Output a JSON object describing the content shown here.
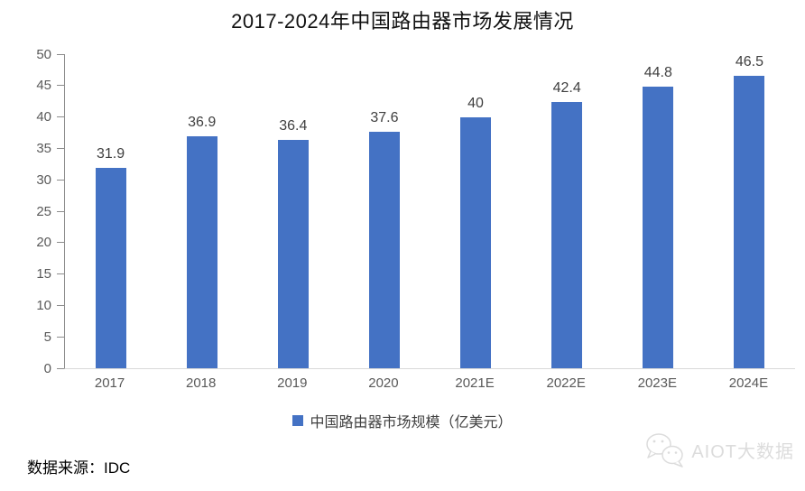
{
  "title": "2017-2024年中国路由器市场发展情况",
  "chart_data": {
    "type": "bar",
    "title": "2017-2024年中国路由器市场发展情况",
    "categories": [
      "2017",
      "2018",
      "2019",
      "2020",
      "2021E",
      "2022E",
      "2023E",
      "2024E"
    ],
    "values": [
      31.9,
      36.9,
      36.4,
      37.6,
      40,
      42.4,
      44.8,
      46.5
    ],
    "value_labels": [
      "31.9",
      "36.9",
      "36.4",
      "37.6",
      "40",
      "42.4",
      "44.8",
      "46.5"
    ],
    "xlabel": "",
    "ylabel": "",
    "ylim": [
      0,
      50
    ],
    "y_ticks": [
      "50",
      "45",
      "40",
      "35",
      "30",
      "25",
      "20",
      "15",
      "10",
      "5",
      "0"
    ],
    "grid": false,
    "legend_position": "bottom",
    "legend": [
      "中国路由器市场规模（亿美元）"
    ],
    "bar_color": "#4472C4"
  },
  "legend": {
    "marker_color": "#4472C4",
    "label": "中国路由器市场规模（亿美元）"
  },
  "footer": {
    "source": "数据来源：IDC"
  },
  "watermark": {
    "icon": "wechat-icon",
    "text": "AIOT大数据",
    "color": "#dcdcdc"
  }
}
